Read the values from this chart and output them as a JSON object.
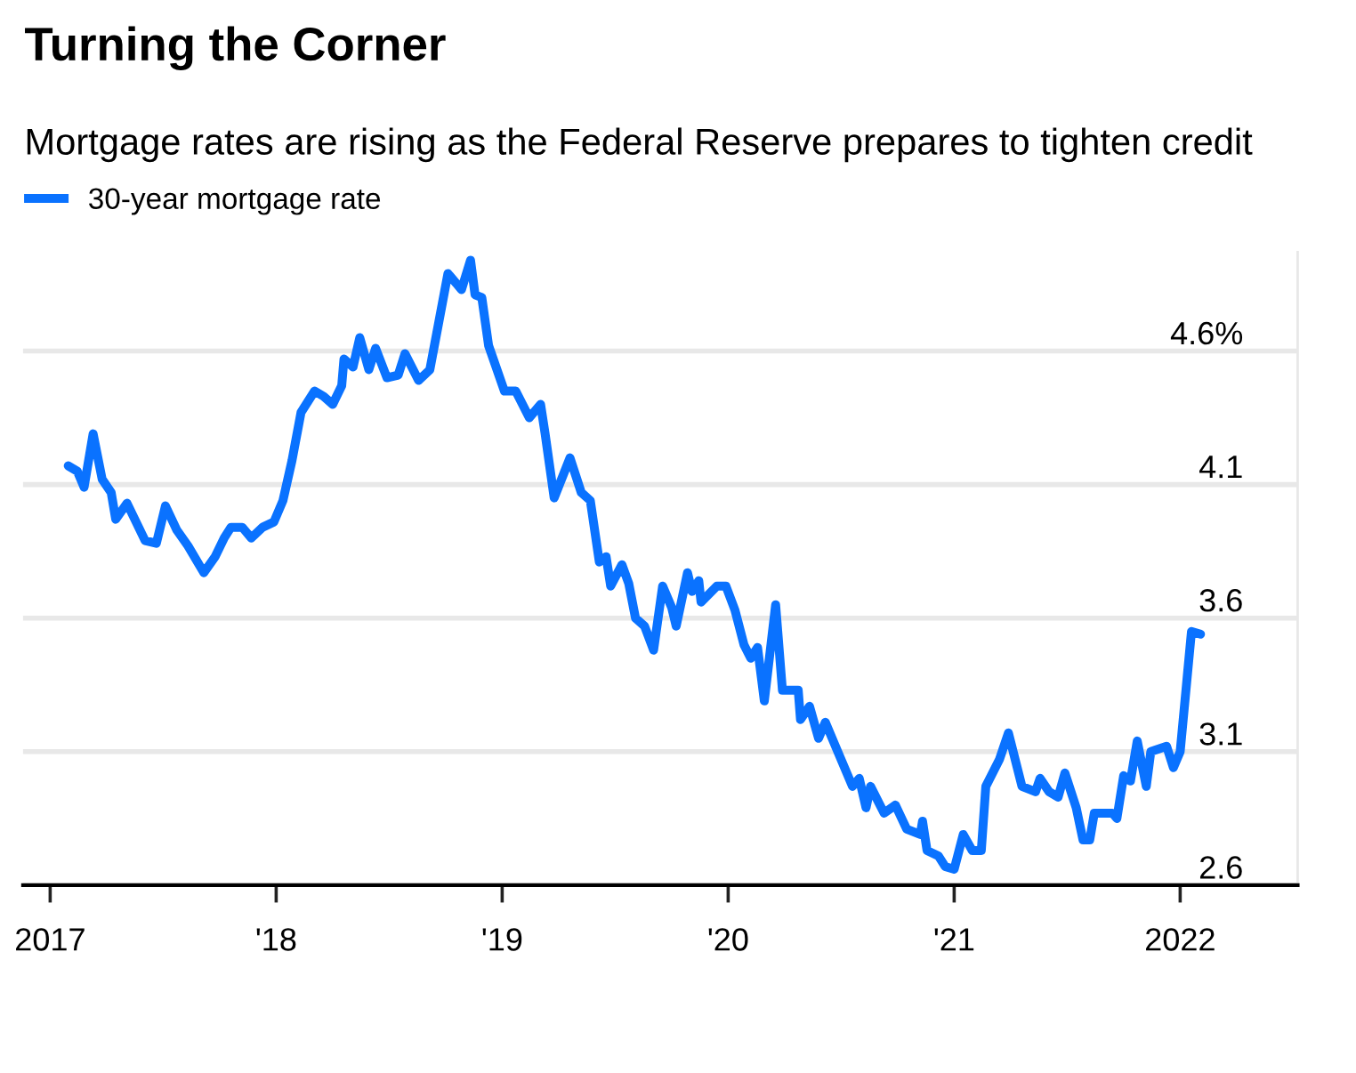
{
  "chart_data": {
    "type": "line",
    "title": "Turning the Corner",
    "subtitle": "Mortgage rates are rising as the Federal Reserve prepares to tighten credit",
    "series": [
      {
        "name": "30-year mortgage rate",
        "color": "#0a72ff",
        "x": [
          2017.08,
          2017.12,
          2017.15,
          2017.19,
          2017.23,
          2017.27,
          2017.29,
          2017.34,
          2017.38,
          2017.42,
          2017.47,
          2017.51,
          2017.56,
          2017.61,
          2017.68,
          2017.73,
          2017.77,
          2017.8,
          2017.85,
          2017.89,
          2017.94,
          2017.99,
          2018.03,
          2018.07,
          2018.11,
          2018.17,
          2018.21,
          2018.25,
          2018.29,
          2018.3,
          2018.34,
          2018.37,
          2018.41,
          2018.44,
          2018.49,
          2018.54,
          2018.57,
          2018.63,
          2018.68,
          2018.72,
          2018.76,
          2018.82,
          2018.86,
          2018.88,
          2018.91,
          2018.94,
          2019.01,
          2019.06,
          2019.12,
          2019.17,
          2019.19,
          2019.23,
          2019.3,
          2019.35,
          2019.39,
          2019.43,
          2019.46,
          2019.48,
          2019.53,
          2019.56,
          2019.59,
          2019.63,
          2019.67,
          2019.71,
          2019.75,
          2019.77,
          2019.82,
          2019.84,
          2019.87,
          2019.88,
          2019.95,
          2019.99,
          2020.03,
          2020.07,
          2020.1,
          2020.13,
          2020.16,
          2020.21,
          2020.24,
          2020.31,
          2020.32,
          2020.36,
          2020.4,
          2020.43,
          2020.47,
          2020.55,
          2020.58,
          2020.61,
          2020.63,
          2020.69,
          2020.74,
          2020.79,
          2020.85,
          2020.86,
          2020.88,
          2020.93,
          2020.96,
          2021.0,
          2021.04,
          2021.08,
          2021.12,
          2021.14,
          2021.2,
          2021.24,
          2021.3,
          2021.36,
          2021.38,
          2021.42,
          2021.46,
          2021.49,
          2021.54,
          2021.57,
          2021.6,
          2021.62,
          2021.7,
          2021.72,
          2021.75,
          2021.78,
          2021.81,
          2021.85,
          2021.87,
          2021.94,
          2021.97,
          2022.0,
          2022.03,
          2022.05,
          2022.09
        ],
        "values": [
          4.17,
          4.15,
          4.09,
          4.29,
          4.12,
          4.07,
          3.97,
          4.03,
          3.96,
          3.89,
          3.88,
          4.02,
          3.93,
          3.87,
          3.77,
          3.83,
          3.9,
          3.94,
          3.94,
          3.9,
          3.94,
          3.96,
          4.04,
          4.19,
          4.37,
          4.45,
          4.43,
          4.4,
          4.47,
          4.57,
          4.54,
          4.65,
          4.53,
          4.61,
          4.5,
          4.51,
          4.59,
          4.49,
          4.53,
          4.71,
          4.89,
          4.83,
          4.94,
          4.81,
          4.8,
          4.62,
          4.45,
          4.45,
          4.35,
          4.4,
          4.29,
          4.05,
          4.2,
          4.07,
          4.04,
          3.81,
          3.83,
          3.72,
          3.8,
          3.73,
          3.6,
          3.57,
          3.48,
          3.72,
          3.64,
          3.57,
          3.77,
          3.7,
          3.74,
          3.66,
          3.72,
          3.72,
          3.63,
          3.5,
          3.45,
          3.49,
          3.29,
          3.65,
          3.33,
          3.33,
          3.22,
          3.27,
          3.15,
          3.21,
          3.13,
          2.97,
          3.0,
          2.89,
          2.97,
          2.87,
          2.9,
          2.81,
          2.79,
          2.84,
          2.73,
          2.71,
          2.67,
          2.66,
          2.79,
          2.73,
          2.73,
          2.97,
          3.07,
          3.17,
          2.97,
          2.95,
          3.0,
          2.95,
          2.93,
          3.02,
          2.89,
          2.77,
          2.77,
          2.87,
          2.87,
          2.85,
          3.01,
          2.99,
          3.14,
          2.97,
          3.1,
          3.12,
          3.04,
          3.1,
          3.37,
          3.55,
          3.54
        ]
      }
    ],
    "xlim": [
      2016.88,
      2022.52
    ],
    "xticks": [
      {
        "value": 2017,
        "label": "2017"
      },
      {
        "value": 2018,
        "label": "'18"
      },
      {
        "value": 2019,
        "label": "'19"
      },
      {
        "value": 2020,
        "label": "'20"
      },
      {
        "value": 2021,
        "label": "'21"
      },
      {
        "value": 2022,
        "label": "2022"
      }
    ],
    "ylim": [
      2.6,
      4.97
    ],
    "yticks": [
      2.6,
      3.1,
      3.6,
      4.1,
      {
        "value": 4.6,
        "label": "4.6%"
      }
    ],
    "grid": "y",
    "legend": "top left",
    "line_style": "solid",
    "marker": "none"
  }
}
